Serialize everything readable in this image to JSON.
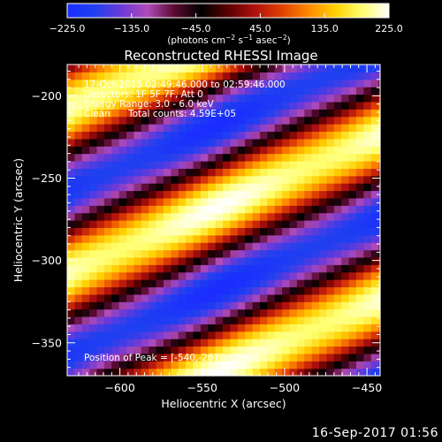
{
  "chart_data": {
    "type": "heatmap",
    "title": "Reconstructed RHESSI Image",
    "xlabel": "Heliocentric X (arcsec)",
    "ylabel": "Heliocentric Y (arcsec)",
    "xlim": [
      -632,
      -442
    ],
    "ylim": [
      -370,
      -181
    ],
    "xticks": [
      -600,
      -550,
      -500,
      -450
    ],
    "yticks": [
      -350,
      -300,
      -250,
      -200
    ],
    "xtick_labels": [
      "−600",
      "−550",
      "−500",
      "−450"
    ],
    "ytick_labels": [
      "−350",
      "−300",
      "−250",
      "−200"
    ],
    "colorbar": {
      "min": -225.0,
      "max": 225.0,
      "ticks": [
        -225.0,
        -135.0,
        -45.0,
        45.0,
        135.0,
        225.0
      ],
      "tick_labels": [
        "−225.0",
        "−135.0",
        "−45.0",
        "45.0",
        "135.0",
        "225.0"
      ],
      "colors": [
        "#1a2cff",
        "#2040f0",
        "#6a3ad8",
        "#b04ab8",
        "#5a0a30",
        "#000000",
        "#5a0000",
        "#b01010",
        "#e04000",
        "#ff8800",
        "#ffd000",
        "#ffff70",
        "#ffffff"
      ]
    },
    "annotations": {
      "time_range": "17-Oct-2015 02:49:46.000 to 02:59:46.000",
      "detectors": "Detectors: 1F 5F 7F, Att 0",
      "energy": "Energy Range: 3.0 - 6.0 keV",
      "clean": "Clean",
      "total_counts": "Total counts: 4.59E+05",
      "peak": "Position of Peak = [-540,-267]"
    },
    "peak": [
      -540,
      -267
    ],
    "grid": false
  },
  "footer": {
    "date": "16-Sep-2017 01:56"
  }
}
